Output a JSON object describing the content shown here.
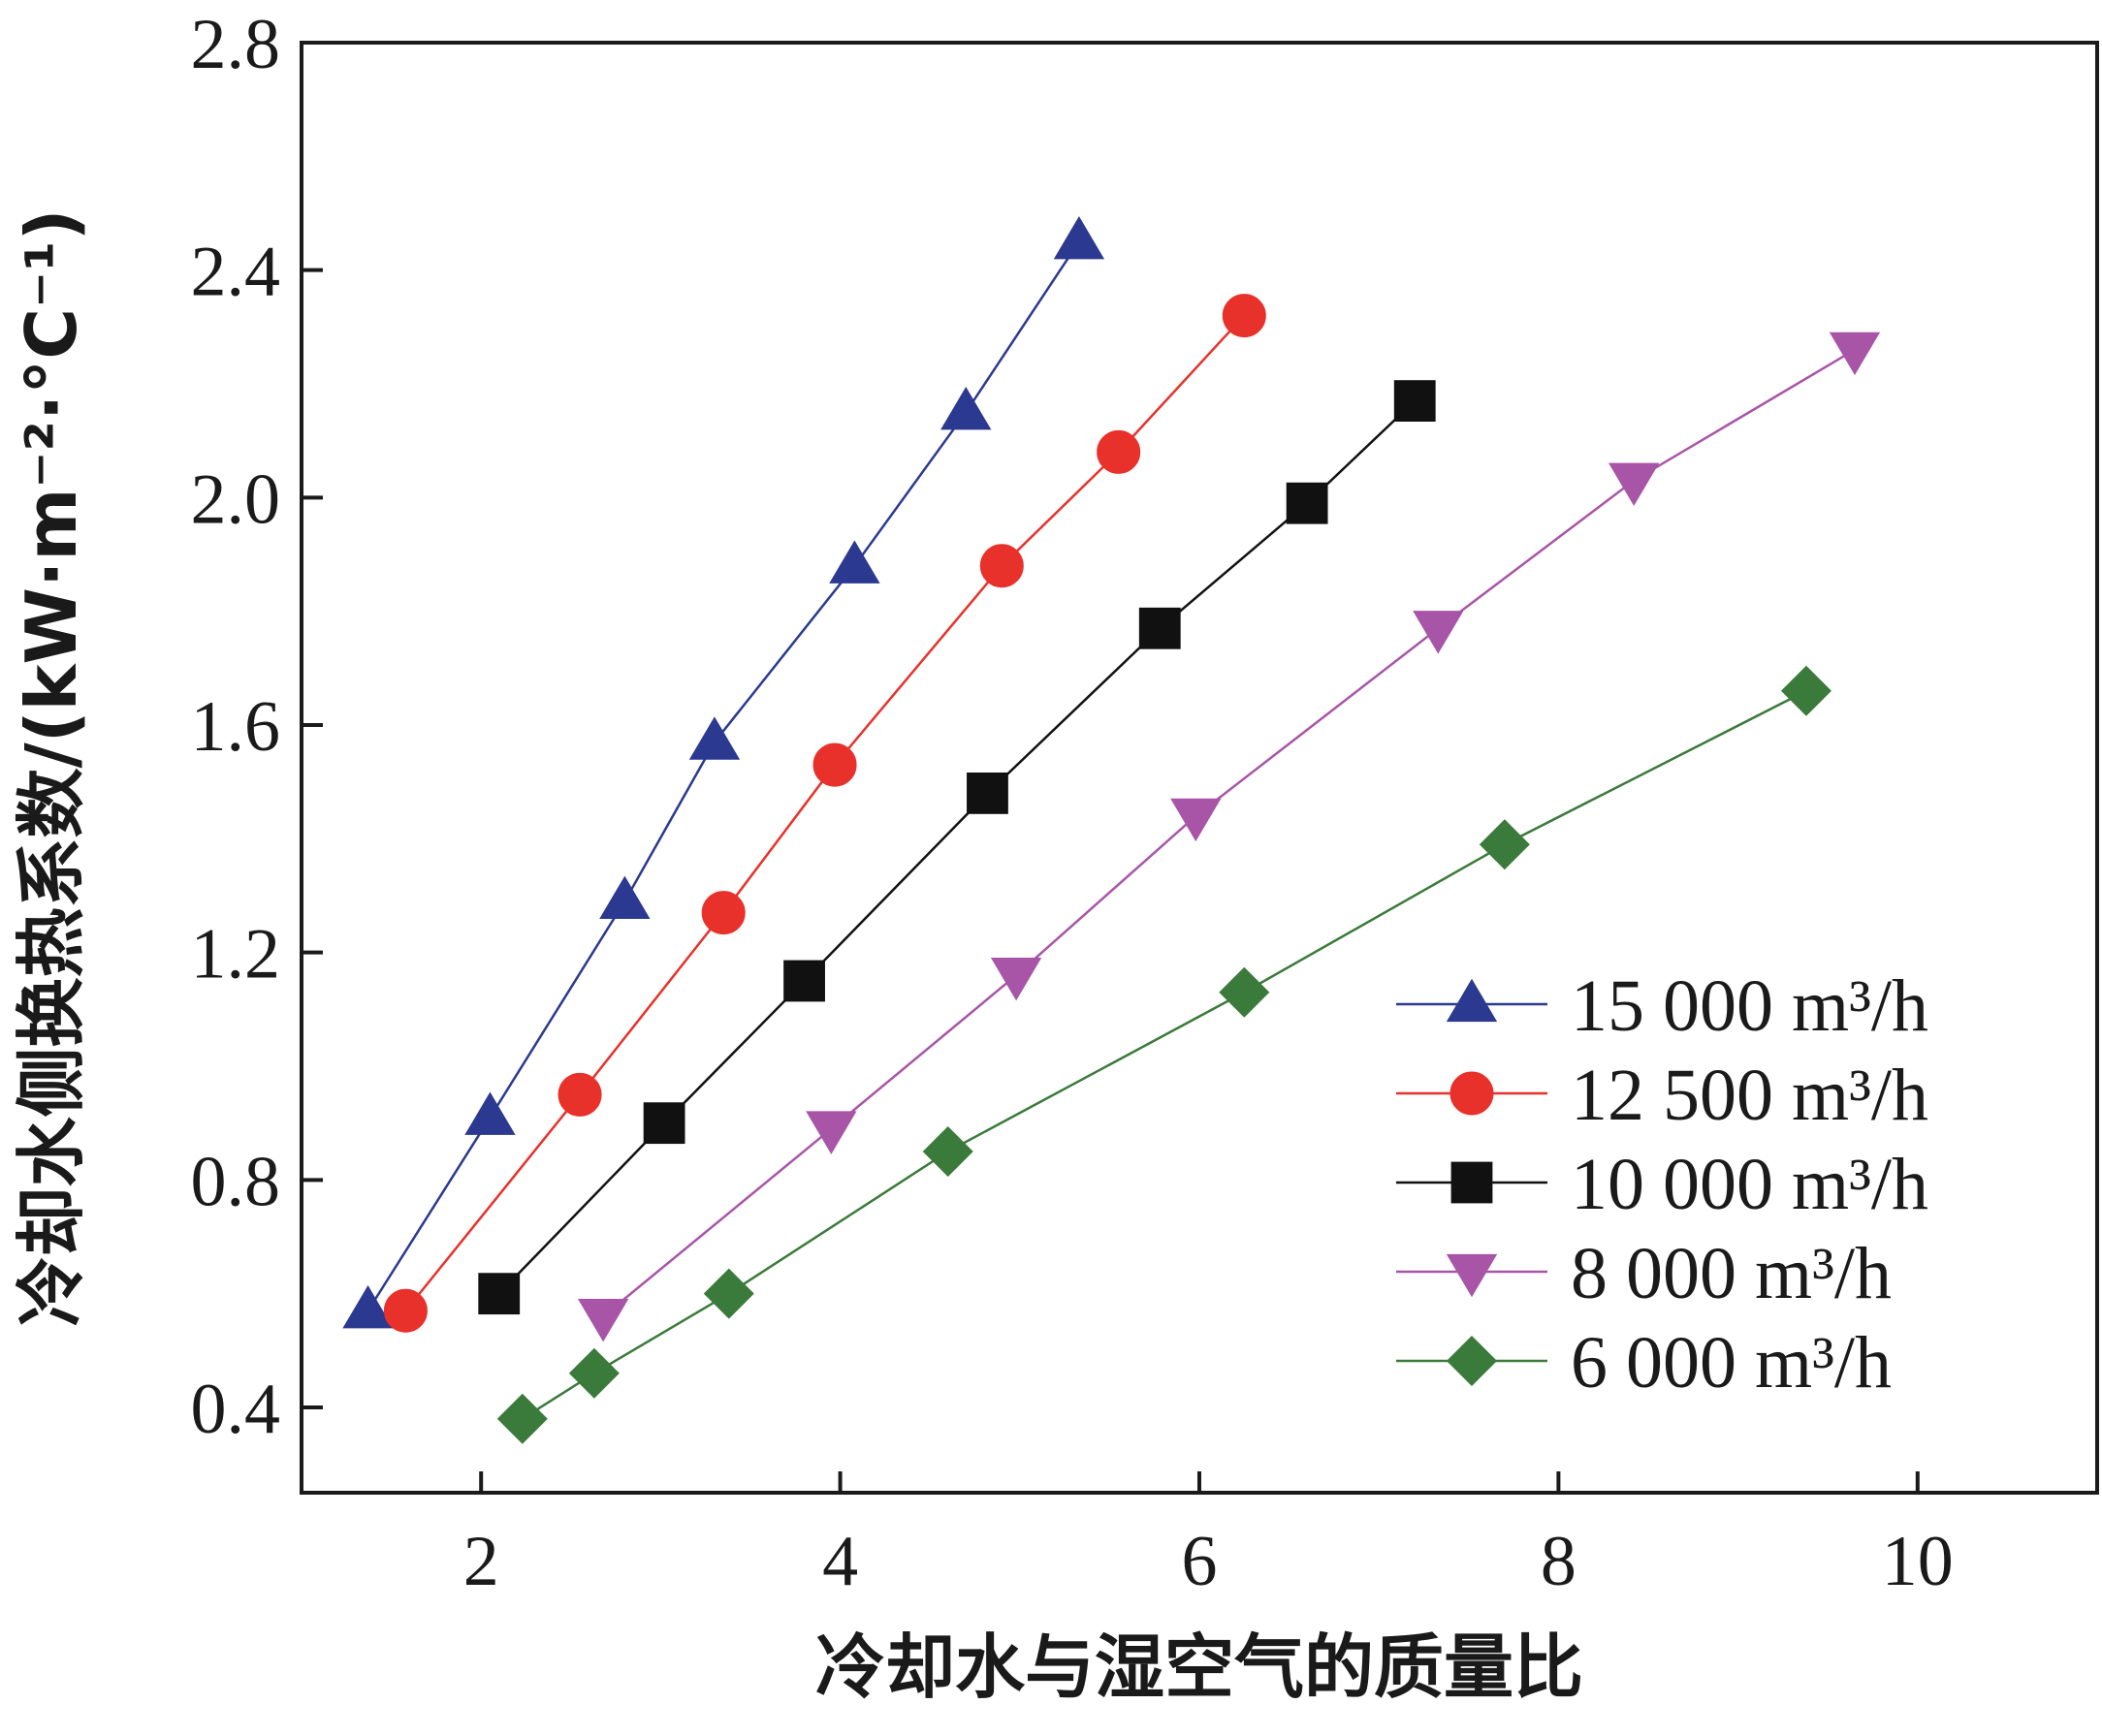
{
  "chart_data": {
    "type": "line",
    "xlabel": "冷却水与湿空气的质量比",
    "ylabel": "冷却水侧换热系数/(kW·m⁻²·°C⁻¹)",
    "xlim": [
      1.0,
      11.0
    ],
    "ylim": [
      0.25,
      2.8
    ],
    "xticks": [
      2,
      4,
      6,
      8,
      10
    ],
    "xtick_labels": [
      "2",
      "4",
      "6",
      "8",
      "10"
    ],
    "yticks": [
      0.4,
      0.8,
      1.2,
      1.6,
      2.0,
      2.4,
      2.8
    ],
    "ytick_labels": [
      "0.4",
      "0.8",
      "1.2",
      "1.6",
      "2.0",
      "2.4",
      "2.8"
    ],
    "grid": false,
    "legend_position": "bottom-right",
    "series": [
      {
        "name": "15 000 m³/h",
        "marker": "triangle-up",
        "color": "#2b3990",
        "x": [
          1.37,
          2.05,
          2.8,
          3.3,
          4.08,
          4.7,
          5.33
        ],
        "y": [
          0.57,
          0.91,
          1.29,
          1.57,
          1.88,
          2.15,
          2.45
        ]
      },
      {
        "name": "12 500 m³/h",
        "marker": "circle",
        "color": "#e8312a",
        "x": [
          1.58,
          2.55,
          3.35,
          3.97,
          4.9,
          5.55,
          6.25
        ],
        "y": [
          0.57,
          0.95,
          1.27,
          1.53,
          1.88,
          2.08,
          2.32
        ]
      },
      {
        "name": "10 000 m³/h",
        "marker": "square",
        "color": "#111111",
        "x": [
          2.1,
          3.02,
          3.8,
          4.82,
          5.78,
          6.6,
          7.2
        ],
        "y": [
          0.6,
          0.9,
          1.15,
          1.48,
          1.77,
          1.99,
          2.17
        ]
      },
      {
        "name": "8 000 m³/h",
        "marker": "triangle-down",
        "color": "#a855a8",
        "x": [
          2.68,
          3.95,
          4.98,
          5.98,
          7.33,
          8.42,
          9.65
        ],
        "y": [
          0.56,
          0.89,
          1.16,
          1.44,
          1.77,
          2.03,
          2.26
        ]
      },
      {
        "name": "6 000 m³/h",
        "marker": "diamond",
        "color": "#3a7a3a",
        "x": [
          2.23,
          2.63,
          3.38,
          4.6,
          6.25,
          7.7,
          9.38
        ],
        "y": [
          0.38,
          0.46,
          0.6,
          0.85,
          1.13,
          1.39,
          1.66
        ]
      }
    ]
  }
}
